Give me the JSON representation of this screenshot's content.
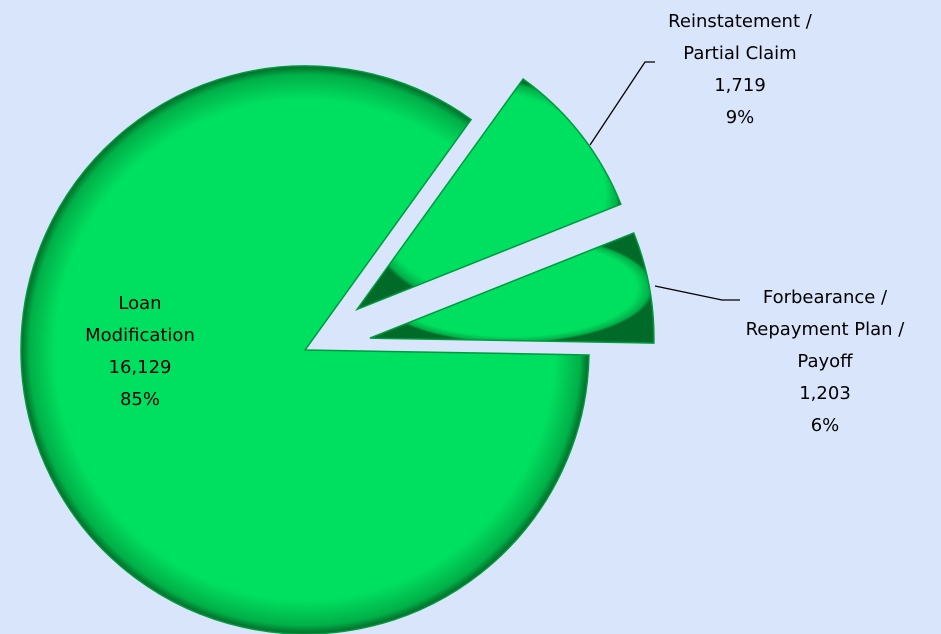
{
  "chart_data": {
    "type": "pie",
    "categories": [
      "Loan Modification",
      "Reinstatement / Partial Claim",
      "Forbearance / Repayment Plan / Payoff"
    ],
    "values": [
      16129,
      1719,
      1203
    ],
    "value_labels": [
      "16,129",
      "1,719",
      "1,203"
    ],
    "percents": [
      85,
      9,
      6
    ],
    "percent_labels": [
      "85%",
      "9%",
      "6%"
    ],
    "exploded": [
      false,
      true,
      true
    ],
    "color": "#00e060"
  }
}
